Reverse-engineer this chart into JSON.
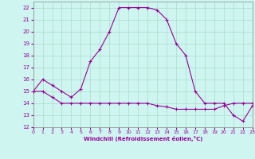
{
  "xlabel": "Windchill (Refroidissement éolien,°C)",
  "background_color": "#cef5f0",
  "grid_color": "#aaddcc",
  "line_color": "#990099",
  "hours": [
    0,
    1,
    2,
    3,
    4,
    5,
    6,
    7,
    8,
    9,
    10,
    11,
    12,
    13,
    14,
    15,
    16,
    17,
    18,
    19,
    20,
    21,
    22,
    23
  ],
  "temp": [
    15,
    15,
    14.5,
    14,
    14,
    14,
    14,
    14,
    14,
    14,
    14,
    14,
    14,
    13.8,
    13.7,
    13.5,
    13.5,
    13.5,
    13.5,
    13.5,
    13.8,
    14,
    14,
    14
  ],
  "windchill": [
    15,
    16,
    15.5,
    15,
    14.5,
    15.2,
    17.5,
    18.5,
    20,
    22,
    22,
    22,
    22,
    21.8,
    21,
    19,
    18,
    15,
    14,
    14,
    14,
    13,
    12.5,
    13.8
  ],
  "ylim": [
    12,
    22.5
  ],
  "xlim": [
    0,
    23
  ],
  "yticks": [
    12,
    13,
    14,
    15,
    16,
    17,
    18,
    19,
    20,
    21,
    22
  ],
  "xticks": [
    0,
    1,
    2,
    3,
    4,
    5,
    6,
    7,
    8,
    9,
    10,
    11,
    12,
    13,
    14,
    15,
    16,
    17,
    18,
    19,
    20,
    21,
    22,
    23
  ],
  "xtick_labels": [
    "0",
    "1",
    "2",
    "3",
    "4",
    "5",
    "6",
    "7",
    "8",
    "9",
    "10",
    "11",
    "12",
    "13",
    "14",
    "15",
    "16",
    "17",
    "18",
    "19",
    "20",
    "21",
    "22",
    "23"
  ]
}
